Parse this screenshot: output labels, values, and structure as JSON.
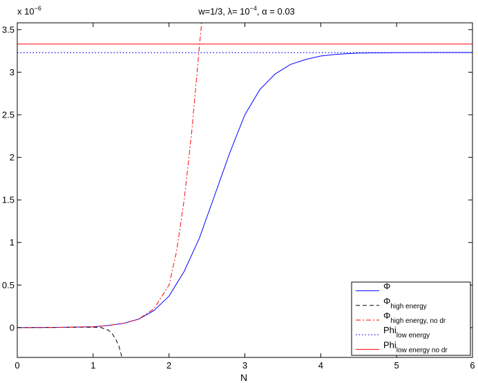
{
  "chart_data": {
    "type": "line",
    "title": "w=1/3, λ= 10⁻⁴, α = 0.03",
    "title_parts": {
      "pre": "w=1/3, λ= 10",
      "exp": "−4",
      "post": ", α = 0.03"
    },
    "xlabel": "N",
    "ylabel": "",
    "y_scale_label": {
      "pre": "x 10",
      "exp": "−6"
    },
    "xlim": [
      0,
      6
    ],
    "ylim": [
      -0.35,
      3.58
    ],
    "xticks": [
      0,
      1,
      2,
      3,
      4,
      5,
      6
    ],
    "xtick_labels": [
      "0",
      "1",
      "2",
      "3",
      "4",
      "5",
      "6"
    ],
    "yticks": [
      0,
      0.5,
      1,
      1.5,
      2,
      2.5,
      3,
      3.5
    ],
    "ytick_labels": [
      "0",
      "0.5",
      "1",
      "1.5",
      "2",
      "2.5",
      "3",
      "3.5"
    ],
    "grid": false,
    "legend_position": "bottom-right",
    "series": [
      {
        "name": "Φ",
        "legend_base": "Φ",
        "legend_sub": "",
        "color": "#0000ff",
        "style": "solid",
        "x": [
          0,
          0.5,
          1,
          1.2,
          1.4,
          1.6,
          1.8,
          2.0,
          2.2,
          2.4,
          2.6,
          2.8,
          3.0,
          3.2,
          3.4,
          3.6,
          3.8,
          4.0,
          4.2,
          4.5,
          5.0,
          5.5,
          6.0
        ],
        "y": [
          0,
          0.002,
          0.01,
          0.025,
          0.05,
          0.1,
          0.2,
          0.37,
          0.66,
          1.05,
          1.55,
          2.05,
          2.5,
          2.8,
          2.98,
          3.09,
          3.15,
          3.19,
          3.21,
          3.225,
          3.23,
          3.232,
          3.232
        ]
      },
      {
        "name": "Φhigh energy",
        "legend_base": "Φ",
        "legend_sub": "high energy",
        "color": "#000000",
        "style": "dashed",
        "x": [
          0,
          0.5,
          1.0,
          1.1,
          1.2,
          1.25,
          1.3,
          1.34,
          1.38
        ],
        "y": [
          0,
          0.002,
          0.005,
          0.002,
          -0.03,
          -0.07,
          -0.14,
          -0.22,
          -0.35
        ]
      },
      {
        "name": "Φhigh energy, no dr",
        "legend_base": "Φ",
        "legend_sub": "high energy, no dr",
        "color": "#ff0000",
        "style": "dashdot",
        "x": [
          0,
          0.5,
          1.0,
          1.2,
          1.4,
          1.6,
          1.8,
          2.0,
          2.1,
          2.2,
          2.3,
          2.35,
          2.4,
          2.43
        ],
        "y": [
          0,
          0.002,
          0.01,
          0.025,
          0.05,
          0.1,
          0.22,
          0.5,
          0.9,
          1.5,
          2.3,
          2.8,
          3.3,
          3.58
        ]
      },
      {
        "name": "Philow energy",
        "legend_base": "Phi",
        "legend_sub": "low energy",
        "color": "#0000ff",
        "style": "dotted",
        "x": [
          0,
          6
        ],
        "y": [
          3.23,
          3.23
        ]
      },
      {
        "name": "Philow energy no dr",
        "legend_base": "Phi",
        "legend_sub": "low energy no dr",
        "color": "#ff0000",
        "style": "solid",
        "x": [
          0,
          6
        ],
        "y": [
          3.33,
          3.33
        ]
      }
    ]
  }
}
